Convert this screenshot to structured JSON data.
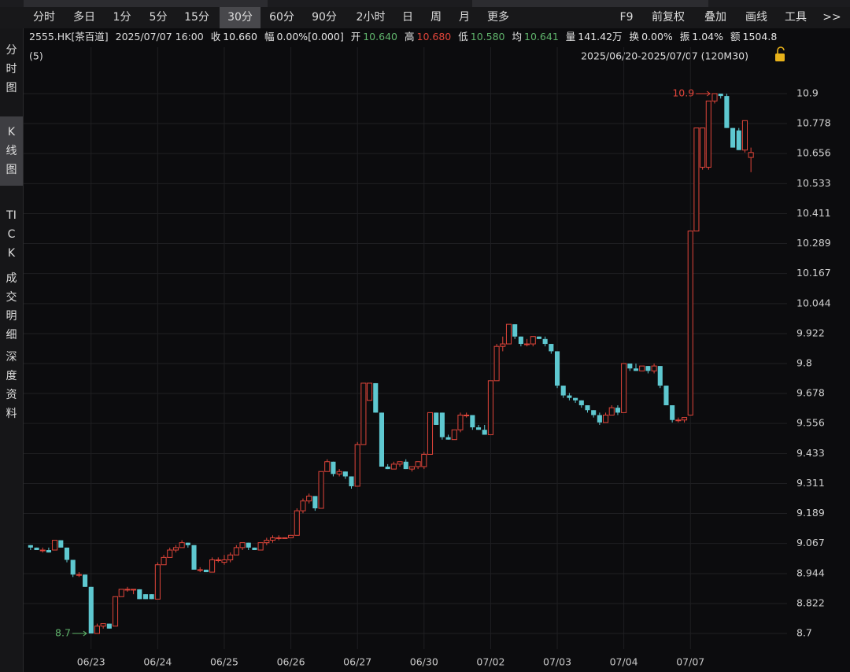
{
  "toolbar": {
    "left": [
      "分时",
      "多日",
      "1分",
      "5分",
      "15分",
      "30分",
      "60分",
      "90分",
      "2小时",
      "日",
      "周",
      "月",
      "更多"
    ],
    "selected": 5,
    "right": [
      "F9",
      "前复权",
      "叠加",
      "画线",
      "工具",
      ">>"
    ]
  },
  "sidebar": {
    "items": [
      "分时图",
      "K线图",
      "TICK",
      "成交明细",
      "深度资料"
    ],
    "selected": 1
  },
  "info": {
    "symbol": "2555.HK[茶百道]",
    "datetime": "2025/07/07 16:00",
    "fields": [
      {
        "label": "收",
        "value": "10.660",
        "color": "#e6e6e6"
      },
      {
        "label": "幅",
        "value": "0.00%[0.000]",
        "color": "#e6e6e6"
      },
      {
        "label": "开",
        "value": "10.640",
        "color": "#5fb36b"
      },
      {
        "label": "高",
        "value": "10.680",
        "color": "#e0453a"
      },
      {
        "label": "低",
        "value": "10.580",
        "color": "#5fb36b"
      },
      {
        "label": "均",
        "value": "10.641",
        "color": "#5fb36b"
      },
      {
        "label": "量",
        "value": "141.42万",
        "color": "#e6e6e6"
      },
      {
        "label": "换",
        "value": "0.00%",
        "color": "#e6e6e6"
      },
      {
        "label": "振",
        "value": "1.04%",
        "color": "#e6e6e6"
      },
      {
        "label": "额",
        "value": "1504.8",
        "color": "#e6e6e6"
      }
    ]
  },
  "chart_data": {
    "type": "candlestick",
    "subtitle": "(5)",
    "range_label": "2025/06/20-2025/07/07 (120M30)",
    "up_color": "#e0453a",
    "down_color": "#5ec8d0",
    "grid": true,
    "annotations": [
      "10.9",
      "8.7"
    ],
    "ylim": [
      8.636,
      11.025
    ],
    "yticks": [
      10.9,
      10.778,
      10.656,
      10.533,
      10.411,
      10.289,
      10.167,
      10.044,
      9.922,
      9.8,
      9.678,
      9.556,
      9.433,
      9.311,
      9.189,
      9.067,
      8.944,
      8.822,
      8.7
    ],
    "categories": [
      null,
      null,
      null,
      null,
      null,
      null,
      null,
      null,
      null,
      null,
      "06/23",
      null,
      null,
      null,
      null,
      null,
      null,
      null,
      null,
      null,
      null,
      "06/24",
      null,
      null,
      null,
      null,
      null,
      null,
      null,
      null,
      null,
      null,
      "06/25",
      null,
      null,
      null,
      null,
      null,
      null,
      null,
      null,
      null,
      null,
      "06/26",
      null,
      null,
      null,
      null,
      null,
      null,
      null,
      null,
      null,
      null,
      "06/27",
      null,
      null,
      null,
      null,
      null,
      null,
      null,
      null,
      null,
      null,
      "06/30",
      null,
      null,
      null,
      null,
      null,
      null,
      null,
      null,
      null,
      null,
      "07/02",
      null,
      null,
      null,
      null,
      null,
      null,
      null,
      null,
      null,
      null,
      "07/03",
      null,
      null,
      null,
      null,
      null,
      null,
      null,
      null,
      null,
      null,
      "07/04",
      null,
      null,
      null,
      null,
      null,
      null,
      null,
      null,
      null,
      null,
      "07/07",
      null,
      null,
      null,
      null,
      null,
      null,
      null,
      null,
      null,
      null
    ],
    "ohlc": [
      [
        9.06,
        9.06,
        9.04,
        9.05
      ],
      [
        9.05,
        9.05,
        9.04,
        9.04
      ],
      [
        9.04,
        9.05,
        9.03,
        9.04
      ],
      [
        9.04,
        9.05,
        9.03,
        9.03
      ],
      [
        9.04,
        9.08,
        9.04,
        9.08
      ],
      [
        9.08,
        9.08,
        9.05,
        9.05
      ],
      [
        9.05,
        9.05,
        8.99,
        9.0
      ],
      [
        9.0,
        9.0,
        8.93,
        8.94
      ],
      [
        8.94,
        8.95,
        8.93,
        8.94
      ],
      [
        8.94,
        8.94,
        8.89,
        8.89
      ],
      [
        8.89,
        8.89,
        8.7,
        8.7
      ],
      [
        8.7,
        8.74,
        8.7,
        8.73
      ],
      [
        8.73,
        8.74,
        8.72,
        8.74
      ],
      [
        8.74,
        8.74,
        8.72,
        8.72
      ],
      [
        8.73,
        8.85,
        8.73,
        8.85
      ],
      [
        8.85,
        8.88,
        8.85,
        8.88
      ],
      [
        8.88,
        8.89,
        8.87,
        8.88
      ],
      [
        8.88,
        8.88,
        8.86,
        8.88
      ],
      [
        8.88,
        8.88,
        8.84,
        8.84
      ],
      [
        8.86,
        8.86,
        8.84,
        8.84
      ],
      [
        8.86,
        8.86,
        8.84,
        8.84
      ],
      [
        8.84,
        8.99,
        8.84,
        8.98
      ],
      [
        8.98,
        9.02,
        8.98,
        9.01
      ],
      [
        9.01,
        9.05,
        9.01,
        9.04
      ],
      [
        9.04,
        9.06,
        9.03,
        9.05
      ],
      [
        9.05,
        9.08,
        9.05,
        9.07
      ],
      [
        9.07,
        9.07,
        9.05,
        9.06
      ],
      [
        9.06,
        9.06,
        8.96,
        8.96
      ],
      [
        8.96,
        8.97,
        8.95,
        8.96
      ],
      [
        8.96,
        8.96,
        8.95,
        8.95
      ],
      [
        8.95,
        9.01,
        8.95,
        9.0
      ],
      [
        9.0,
        9.01,
        8.99,
        9.0
      ],
      [
        8.99,
        9.02,
        8.98,
        9.0
      ],
      [
        9.0,
        9.03,
        8.99,
        9.02
      ],
      [
        9.02,
        9.06,
        9.02,
        9.05
      ],
      [
        9.05,
        9.07,
        9.04,
        9.07
      ],
      [
        9.07,
        9.07,
        9.04,
        9.05
      ],
      [
        9.05,
        9.05,
        9.04,
        9.04
      ],
      [
        9.04,
        9.07,
        9.04,
        9.07
      ],
      [
        9.07,
        9.09,
        9.06,
        9.08
      ],
      [
        9.08,
        9.1,
        9.07,
        9.09
      ],
      [
        9.09,
        9.1,
        9.08,
        9.09
      ],
      [
        9.09,
        9.09,
        9.09,
        9.09
      ],
      [
        9.09,
        9.1,
        9.09,
        9.1
      ],
      [
        9.1,
        9.21,
        9.1,
        9.2
      ],
      [
        9.2,
        9.25,
        9.19,
        9.24
      ],
      [
        9.24,
        9.27,
        9.23,
        9.26
      ],
      [
        9.26,
        9.26,
        9.2,
        9.21
      ],
      [
        9.21,
        9.36,
        9.21,
        9.36
      ],
      [
        9.36,
        9.41,
        9.36,
        9.4
      ],
      [
        9.4,
        9.4,
        9.34,
        9.35
      ],
      [
        9.35,
        9.37,
        9.34,
        9.36
      ],
      [
        9.36,
        9.36,
        9.33,
        9.34
      ],
      [
        9.34,
        9.34,
        9.29,
        9.3
      ],
      [
        9.3,
        9.48,
        9.3,
        9.47
      ],
      [
        9.47,
        9.72,
        9.47,
        9.72
      ],
      [
        9.65,
        9.72,
        9.65,
        9.72
      ],
      [
        9.72,
        9.72,
        9.6,
        9.6
      ],
      [
        9.6,
        9.6,
        9.38,
        9.38
      ],
      [
        9.38,
        9.39,
        9.37,
        9.37
      ],
      [
        9.37,
        9.4,
        9.37,
        9.39
      ],
      [
        9.39,
        9.4,
        9.38,
        9.4
      ],
      [
        9.4,
        9.41,
        9.37,
        9.37
      ],
      [
        9.37,
        9.38,
        9.36,
        9.38
      ],
      [
        9.38,
        9.4,
        9.37,
        9.4
      ],
      [
        9.38,
        9.44,
        9.37,
        9.43
      ],
      [
        9.43,
        9.6,
        9.43,
        9.6
      ],
      [
        9.6,
        9.6,
        9.55,
        9.55
      ],
      [
        9.6,
        9.6,
        9.49,
        9.5
      ],
      [
        9.5,
        9.51,
        9.49,
        9.49
      ],
      [
        9.49,
        9.53,
        9.49,
        9.53
      ],
      [
        9.53,
        9.6,
        9.52,
        9.59
      ],
      [
        9.59,
        9.6,
        9.58,
        9.59
      ],
      [
        9.59,
        9.59,
        9.53,
        9.54
      ],
      [
        9.54,
        9.55,
        9.53,
        9.53
      ],
      [
        9.53,
        9.55,
        9.51,
        9.51
      ],
      [
        9.51,
        9.73,
        9.51,
        9.73
      ],
      [
        9.73,
        9.88,
        9.73,
        9.87
      ],
      [
        9.87,
        9.91,
        9.85,
        9.88
      ],
      [
        9.88,
        9.96,
        9.88,
        9.96
      ],
      [
        9.96,
        9.96,
        9.9,
        9.91
      ],
      [
        9.91,
        9.91,
        9.87,
        9.88
      ],
      [
        9.88,
        9.9,
        9.87,
        9.88
      ],
      [
        9.88,
        9.91,
        9.87,
        9.91
      ],
      [
        9.91,
        9.91,
        9.9,
        9.9
      ],
      [
        9.9,
        9.91,
        9.87,
        9.88
      ],
      [
        9.88,
        9.88,
        9.84,
        9.85
      ],
      [
        9.85,
        9.85,
        9.7,
        9.71
      ],
      [
        9.71,
        9.71,
        9.66,
        9.67
      ],
      [
        9.67,
        9.68,
        9.65,
        9.66
      ],
      [
        9.66,
        9.66,
        9.64,
        9.65
      ],
      [
        9.65,
        9.65,
        9.62,
        9.63
      ],
      [
        9.63,
        9.63,
        9.6,
        9.61
      ],
      [
        9.61,
        9.61,
        9.58,
        9.59
      ],
      [
        9.59,
        9.6,
        9.55,
        9.56
      ],
      [
        9.56,
        9.6,
        9.56,
        9.59
      ],
      [
        9.59,
        9.63,
        9.59,
        9.62
      ],
      [
        9.62,
        9.63,
        9.59,
        9.6
      ],
      [
        9.6,
        9.8,
        9.6,
        9.8
      ],
      [
        9.8,
        9.8,
        9.77,
        9.78
      ],
      [
        9.78,
        9.8,
        9.77,
        9.77
      ],
      [
        9.77,
        9.79,
        9.77,
        9.79
      ],
      [
        9.79,
        9.79,
        9.76,
        9.77
      ],
      [
        9.77,
        9.8,
        9.76,
        9.79
      ],
      [
        9.79,
        9.79,
        9.7,
        9.71
      ],
      [
        9.71,
        9.71,
        9.63,
        9.63
      ],
      [
        9.63,
        9.63,
        9.56,
        9.57
      ],
      [
        9.57,
        9.58,
        9.56,
        9.57
      ],
      [
        9.57,
        9.58,
        9.56,
        9.58
      ],
      [
        9.59,
        10.34,
        9.59,
        10.34
      ],
      [
        10.34,
        10.76,
        10.34,
        10.76
      ],
      [
        10.6,
        10.76,
        10.59,
        10.76
      ],
      [
        10.6,
        10.87,
        10.59,
        10.87
      ],
      [
        10.87,
        10.9,
        10.86,
        10.9
      ],
      [
        10.9,
        10.9,
        10.88,
        10.89
      ],
      [
        10.89,
        10.9,
        10.76,
        10.76
      ],
      [
        10.76,
        10.76,
        10.68,
        10.68
      ],
      [
        10.75,
        10.76,
        10.67,
        10.67
      ],
      [
        10.67,
        10.79,
        10.66,
        10.79
      ],
      [
        10.64,
        10.68,
        10.58,
        10.66
      ]
    ]
  }
}
